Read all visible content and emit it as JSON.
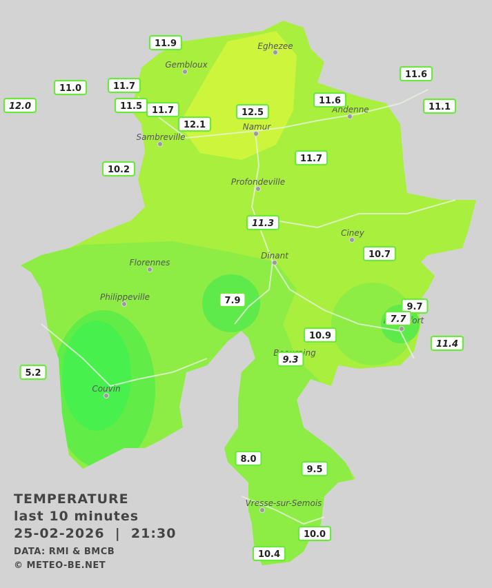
{
  "towns": [
    "Eghezee",
    "Gembloux",
    "Andenne",
    "Namur",
    "Sambreville",
    "Profondeville",
    "Ciney",
    "Dinant",
    "Florennes",
    "Philippeville",
    "Rochefort",
    "Beauraing",
    "Couvin",
    "Vresse-sur-Semois"
  ],
  "stations": [
    {
      "label": "11.9",
      "italic": false
    },
    {
      "label": "11.0",
      "italic": false
    },
    {
      "label": "11.7",
      "italic": false
    },
    {
      "label": "12.0",
      "italic": true
    },
    {
      "label": "11.5",
      "italic": false
    },
    {
      "label": "11.7",
      "italic": false
    },
    {
      "label": "12.1",
      "italic": false
    },
    {
      "label": "12.5",
      "italic": false
    },
    {
      "label": "11.6",
      "italic": false
    },
    {
      "label": "11.6",
      "italic": false
    },
    {
      "label": "11.1",
      "italic": false
    },
    {
      "label": "10.2",
      "italic": false
    },
    {
      "label": "11.7",
      "italic": false
    },
    {
      "label": "11.3",
      "italic": true
    },
    {
      "label": "10.7",
      "italic": false
    },
    {
      "label": "7.9",
      "italic": false
    },
    {
      "label": "9.7",
      "italic": false
    },
    {
      "label": "7.7",
      "italic": true
    },
    {
      "label": "10.9",
      "italic": false
    },
    {
      "label": "11.4",
      "italic": true
    },
    {
      "label": "9.3",
      "italic": true
    },
    {
      "label": "5.2",
      "italic": false
    },
    {
      "label": "8.0",
      "italic": false
    },
    {
      "label": "9.5",
      "italic": false
    },
    {
      "label": "10.0",
      "italic": false
    },
    {
      "label": "10.4",
      "italic": false
    }
  ],
  "legend": {
    "title": "TEMPERATURE",
    "period": "last 10 minutes",
    "timestamp": "25-02-2026  |  21:30",
    "source": "DATA: RMI & BMCB",
    "copyright": "© METEO-BE.NET"
  }
}
